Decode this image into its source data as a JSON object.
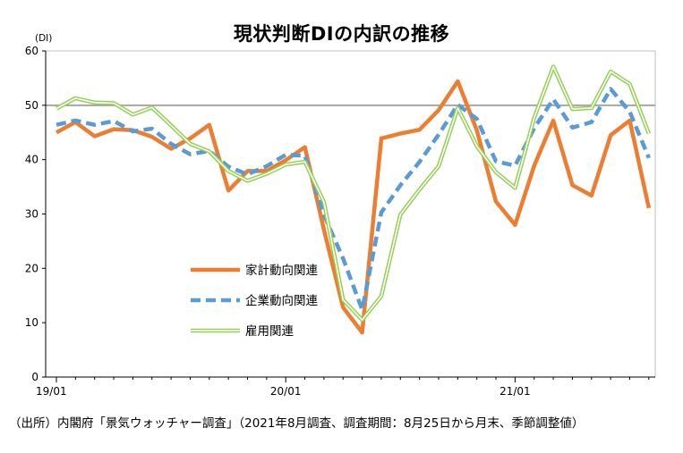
{
  "chart_data": {
    "type": "line",
    "title": "現状判断DIの内訳の推移",
    "yunit": "(DI)",
    "ylim": [
      0,
      60
    ],
    "yticks": [
      "0",
      "10",
      "20",
      "30",
      "40",
      "50",
      "60"
    ],
    "xticks": [
      {
        "label": "19/01",
        "index": 0
      },
      {
        "label": "20/01",
        "index": 12
      },
      {
        "label": "21/01",
        "index": 24
      }
    ],
    "reference_line": 50,
    "legend_position": "center-left",
    "x": [
      "19/01",
      "19/02",
      "19/03",
      "19/04",
      "19/05",
      "19/06",
      "19/07",
      "19/08",
      "19/09",
      "19/10",
      "19/11",
      "19/12",
      "20/01",
      "20/02",
      "20/03",
      "20/04",
      "20/05",
      "20/06",
      "20/07",
      "20/08",
      "20/09",
      "20/10",
      "20/11",
      "20/12",
      "21/01",
      "21/02",
      "21/03",
      "21/04",
      "21/05",
      "21/06",
      "21/07",
      "21/08"
    ],
    "series": [
      {
        "name": "家計動向関連",
        "color": "#ED7D31",
        "values": [
          45.0,
          46.9,
          44.3,
          45.6,
          45.4,
          44.2,
          42.0,
          43.9,
          46.4,
          34.3,
          37.9,
          37.9,
          39.9,
          42.3,
          27.1,
          12.8,
          8.2,
          43.9,
          44.8,
          45.5,
          49.1,
          54.4,
          45.4,
          32.3,
          28.0,
          38.9,
          47.2,
          35.3,
          33.4,
          44.5,
          47.2,
          31.1
        ]
      },
      {
        "name": "企業動向関連",
        "color": "#5B9BD5",
        "values": [
          46.4,
          47.2,
          46.4,
          47.1,
          45.2,
          45.7,
          42.9,
          41.0,
          41.6,
          38.7,
          37.3,
          38.8,
          40.9,
          40.7,
          29.8,
          21.8,
          12.4,
          30.3,
          35.3,
          39.6,
          44.6,
          50.1,
          47.5,
          39.7,
          38.9,
          45.8,
          51.1,
          45.9,
          46.9,
          53.0,
          48.8,
          40.3
        ]
      },
      {
        "name": "雇用関連",
        "color": "#92D050",
        "values": [
          49.4,
          51.3,
          50.5,
          50.4,
          48.3,
          49.6,
          46.3,
          42.9,
          41.5,
          37.9,
          36.1,
          37.4,
          39.1,
          39.6,
          32.2,
          14.2,
          10.5,
          14.9,
          29.9,
          34.5,
          38.8,
          49.5,
          42.5,
          37.7,
          34.8,
          47.7,
          57.1,
          49.3,
          49.5,
          56.2,
          53.9,
          44.8
        ]
      }
    ]
  },
  "source_note": "（出所）内閣府「景気ウォッチャー調査」（2021年8月調査、調査期間：8月25日から月末、季節調整値）"
}
